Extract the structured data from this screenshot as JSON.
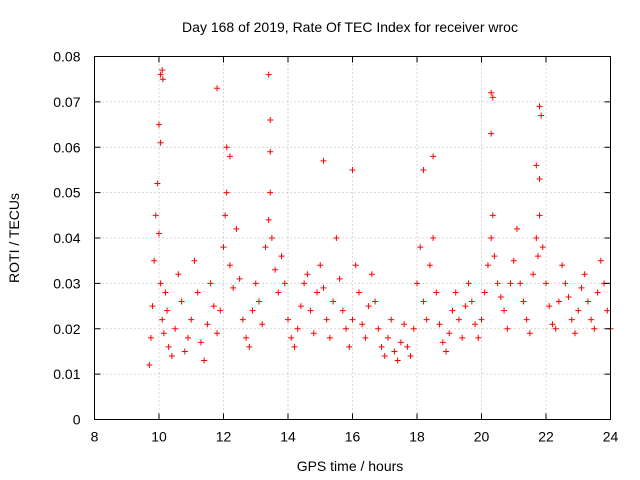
{
  "chart_data": {
    "type": "scatter",
    "title": "Day 168 of 2019, Rate Of TEC Index for receiver wroc",
    "xlabel": "GPS time / hours",
    "ylabel": "ROTI / TECUs",
    "xlim": [
      8,
      24
    ],
    "ylim": [
      0,
      0.08
    ],
    "x_ticks": [
      "8",
      "10",
      "12",
      "14",
      "16",
      "18",
      "20",
      "22",
      "24"
    ],
    "y_ticks": [
      "0",
      "0.01",
      "0.02",
      "0.03",
      "0.04",
      "0.05",
      "0.06",
      "0.07",
      "0.08"
    ],
    "grid": true,
    "marker": "+",
    "color": "#ff0000",
    "series": [
      {
        "name": "ROTI",
        "x": [
          9.7,
          9.75,
          9.8,
          9.85,
          9.9,
          9.95,
          10.0,
          10.05,
          10.1,
          10.15,
          10.2,
          10.25,
          10.3,
          10.4,
          10.5,
          10.6,
          10.7,
          10.8,
          10.9,
          11.0,
          11.1,
          11.2,
          11.3,
          11.4,
          11.5,
          11.6,
          11.7,
          11.8,
          11.9,
          12.0,
          12.05,
          12.1,
          12.2,
          12.3,
          12.4,
          12.5,
          12.6,
          12.7,
          12.8,
          12.9,
          13.0,
          13.1,
          13.2,
          13.3,
          13.4,
          13.45,
          13.5,
          13.6,
          13.7,
          13.8,
          13.9,
          14.0,
          14.1,
          14.2,
          14.3,
          14.4,
          14.5,
          14.6,
          14.7,
          14.8,
          14.9,
          15.0,
          15.1,
          15.2,
          15.3,
          15.4,
          15.5,
          15.6,
          15.7,
          15.8,
          15.9,
          16.0,
          16.1,
          16.2,
          16.3,
          16.4,
          16.5,
          16.6,
          16.7,
          16.8,
          16.9,
          17.0,
          17.1,
          17.2,
          17.3,
          17.4,
          17.5,
          17.6,
          17.7,
          17.8,
          17.9,
          18.0,
          18.1,
          18.2,
          18.3,
          18.4,
          18.5,
          18.6,
          18.7,
          18.8,
          18.9,
          19.0,
          19.1,
          19.2,
          19.3,
          19.4,
          19.5,
          19.6,
          19.7,
          19.8,
          19.9,
          20.0,
          20.1,
          20.2,
          20.3,
          20.35,
          20.4,
          20.5,
          20.6,
          20.7,
          20.8,
          20.9,
          21.0,
          21.1,
          21.2,
          21.3,
          21.4,
          21.5,
          21.6,
          21.7,
          21.75,
          21.8,
          21.9,
          22.0,
          22.1,
          22.2,
          22.3,
          22.4,
          22.5,
          22.6,
          22.7,
          22.8,
          22.9,
          23.0,
          23.1,
          23.2,
          23.3,
          23.4,
          23.5,
          23.6,
          23.7,
          23.8,
          23.9,
          24.0,
          10.05,
          10.1,
          10.12,
          11.8,
          13.4,
          13.45,
          20.3,
          20.35,
          21.8,
          21.85,
          10.0,
          10.05,
          12.1,
          12.2,
          13.45,
          15.1,
          16.0,
          18.2,
          18.5,
          20.3,
          21.7,
          21.8
        ],
        "y": [
          0.012,
          0.018,
          0.025,
          0.035,
          0.045,
          0.052,
          0.041,
          0.03,
          0.022,
          0.019,
          0.028,
          0.024,
          0.016,
          0.014,
          0.02,
          0.032,
          0.026,
          0.015,
          0.018,
          0.022,
          0.035,
          0.028,
          0.017,
          0.013,
          0.021,
          0.03,
          0.025,
          0.019,
          0.024,
          0.038,
          0.045,
          0.05,
          0.034,
          0.029,
          0.042,
          0.031,
          0.022,
          0.018,
          0.016,
          0.024,
          0.03,
          0.026,
          0.021,
          0.038,
          0.044,
          0.05,
          0.04,
          0.033,
          0.028,
          0.036,
          0.03,
          0.022,
          0.018,
          0.016,
          0.02,
          0.025,
          0.03,
          0.032,
          0.024,
          0.019,
          0.028,
          0.034,
          0.029,
          0.022,
          0.018,
          0.026,
          0.04,
          0.031,
          0.024,
          0.02,
          0.016,
          0.022,
          0.034,
          0.028,
          0.021,
          0.018,
          0.025,
          0.032,
          0.026,
          0.02,
          0.016,
          0.014,
          0.018,
          0.022,
          0.015,
          0.013,
          0.017,
          0.021,
          0.016,
          0.014,
          0.02,
          0.03,
          0.038,
          0.026,
          0.022,
          0.034,
          0.04,
          0.028,
          0.021,
          0.017,
          0.015,
          0.019,
          0.024,
          0.028,
          0.022,
          0.018,
          0.025,
          0.03,
          0.026,
          0.021,
          0.018,
          0.022,
          0.028,
          0.034,
          0.04,
          0.045,
          0.036,
          0.03,
          0.027,
          0.024,
          0.02,
          0.03,
          0.035,
          0.042,
          0.03,
          0.026,
          0.022,
          0.019,
          0.032,
          0.04,
          0.036,
          0.045,
          0.038,
          0.03,
          0.025,
          0.021,
          0.02,
          0.026,
          0.034,
          0.03,
          0.027,
          0.022,
          0.019,
          0.024,
          0.029,
          0.032,
          0.026,
          0.022,
          0.02,
          0.028,
          0.035,
          0.03,
          0.024,
          0.02,
          0.076,
          0.077,
          0.075,
          0.073,
          0.076,
          0.066,
          0.072,
          0.071,
          0.069,
          0.067,
          0.065,
          0.061,
          0.06,
          0.058,
          0.059,
          0.057,
          0.055,
          0.055,
          0.058,
          0.063,
          0.056,
          0.053
        ]
      }
    ]
  }
}
